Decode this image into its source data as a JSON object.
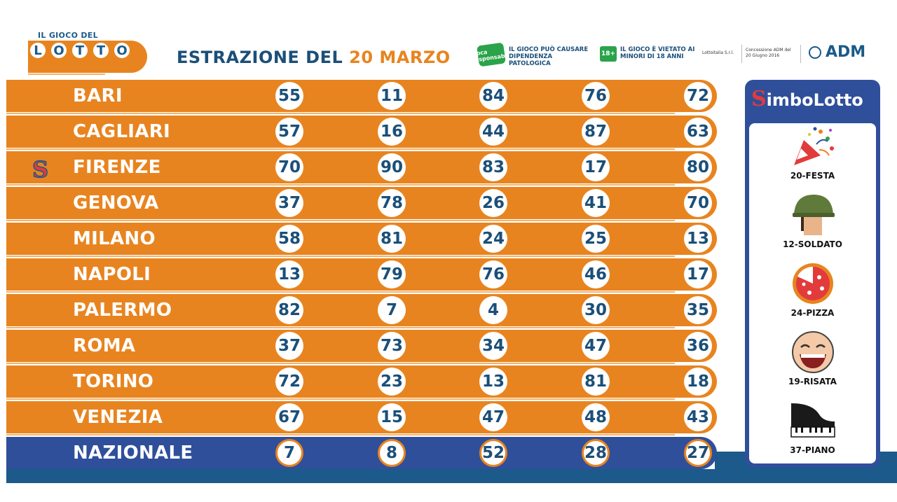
{
  "header": {
    "logo_small": "IL GIOCO DEL",
    "logo_letters": [
      "L",
      "O",
      "T",
      "T",
      "O"
    ],
    "title": "ESTRAZIONE DEL",
    "date": "20 MARZO",
    "warning1_badge": "Gioca Responsabile",
    "warning1": "IL GIOCO PUÒ CAUSARE DIPENDENZA PATOLOGICA",
    "badge18": "18+",
    "warning2": "IL GIOCO È VIETATO AI MINORI DI 18 ANNI",
    "operator": "Lottoitalia S.r.l.",
    "concession": "Concessione ADM del 20 Giugno 2016",
    "adm": "ADM"
  },
  "colors": {
    "orange": "#e8841f",
    "blue": "#2f4f9b",
    "navy": "#1b5a8a",
    "number": "#1b4f78"
  },
  "draws": [
    {
      "city": "BARI",
      "numbers": [
        "55",
        "11",
        "84",
        "76",
        "72"
      ]
    },
    {
      "city": "CAGLIARI",
      "numbers": [
        "57",
        "16",
        "44",
        "87",
        "63"
      ]
    },
    {
      "city": "FIRENZE",
      "numbers": [
        "70",
        "90",
        "83",
        "17",
        "80"
      ]
    },
    {
      "city": "GENOVA",
      "numbers": [
        "37",
        "78",
        "26",
        "41",
        "70"
      ]
    },
    {
      "city": "MILANO",
      "numbers": [
        "58",
        "81",
        "24",
        "25",
        "13"
      ]
    },
    {
      "city": "NAPOLI",
      "numbers": [
        "13",
        "79",
        "76",
        "46",
        "17"
      ]
    },
    {
      "city": "PALERMO",
      "numbers": [
        "82",
        "7",
        "4",
        "30",
        "35"
      ]
    },
    {
      "city": "ROMA",
      "numbers": [
        "37",
        "73",
        "34",
        "47",
        "36"
      ]
    },
    {
      "city": "TORINO",
      "numbers": [
        "72",
        "23",
        "13",
        "81",
        "18"
      ]
    },
    {
      "city": "VENEZIA",
      "numbers": [
        "67",
        "15",
        "47",
        "48",
        "43"
      ]
    },
    {
      "city": "NAZIONALE",
      "numbers": [
        "7",
        "8",
        "52",
        "28",
        "27"
      ]
    }
  ],
  "simbolo_wheel_mark": "S",
  "simbolotto": {
    "title_s": "S",
    "title_rest": "imboLotto",
    "symbols": [
      {
        "label": "20-FESTA",
        "icon": "party-popper-icon"
      },
      {
        "label": "12-SOLDATO",
        "icon": "soldier-helmet-icon"
      },
      {
        "label": "24-PIZZA",
        "icon": "pizza-icon"
      },
      {
        "label": "19-RISATA",
        "icon": "laughing-face-icon"
      },
      {
        "label": "37-PIANO",
        "icon": "grand-piano-icon"
      }
    ]
  }
}
